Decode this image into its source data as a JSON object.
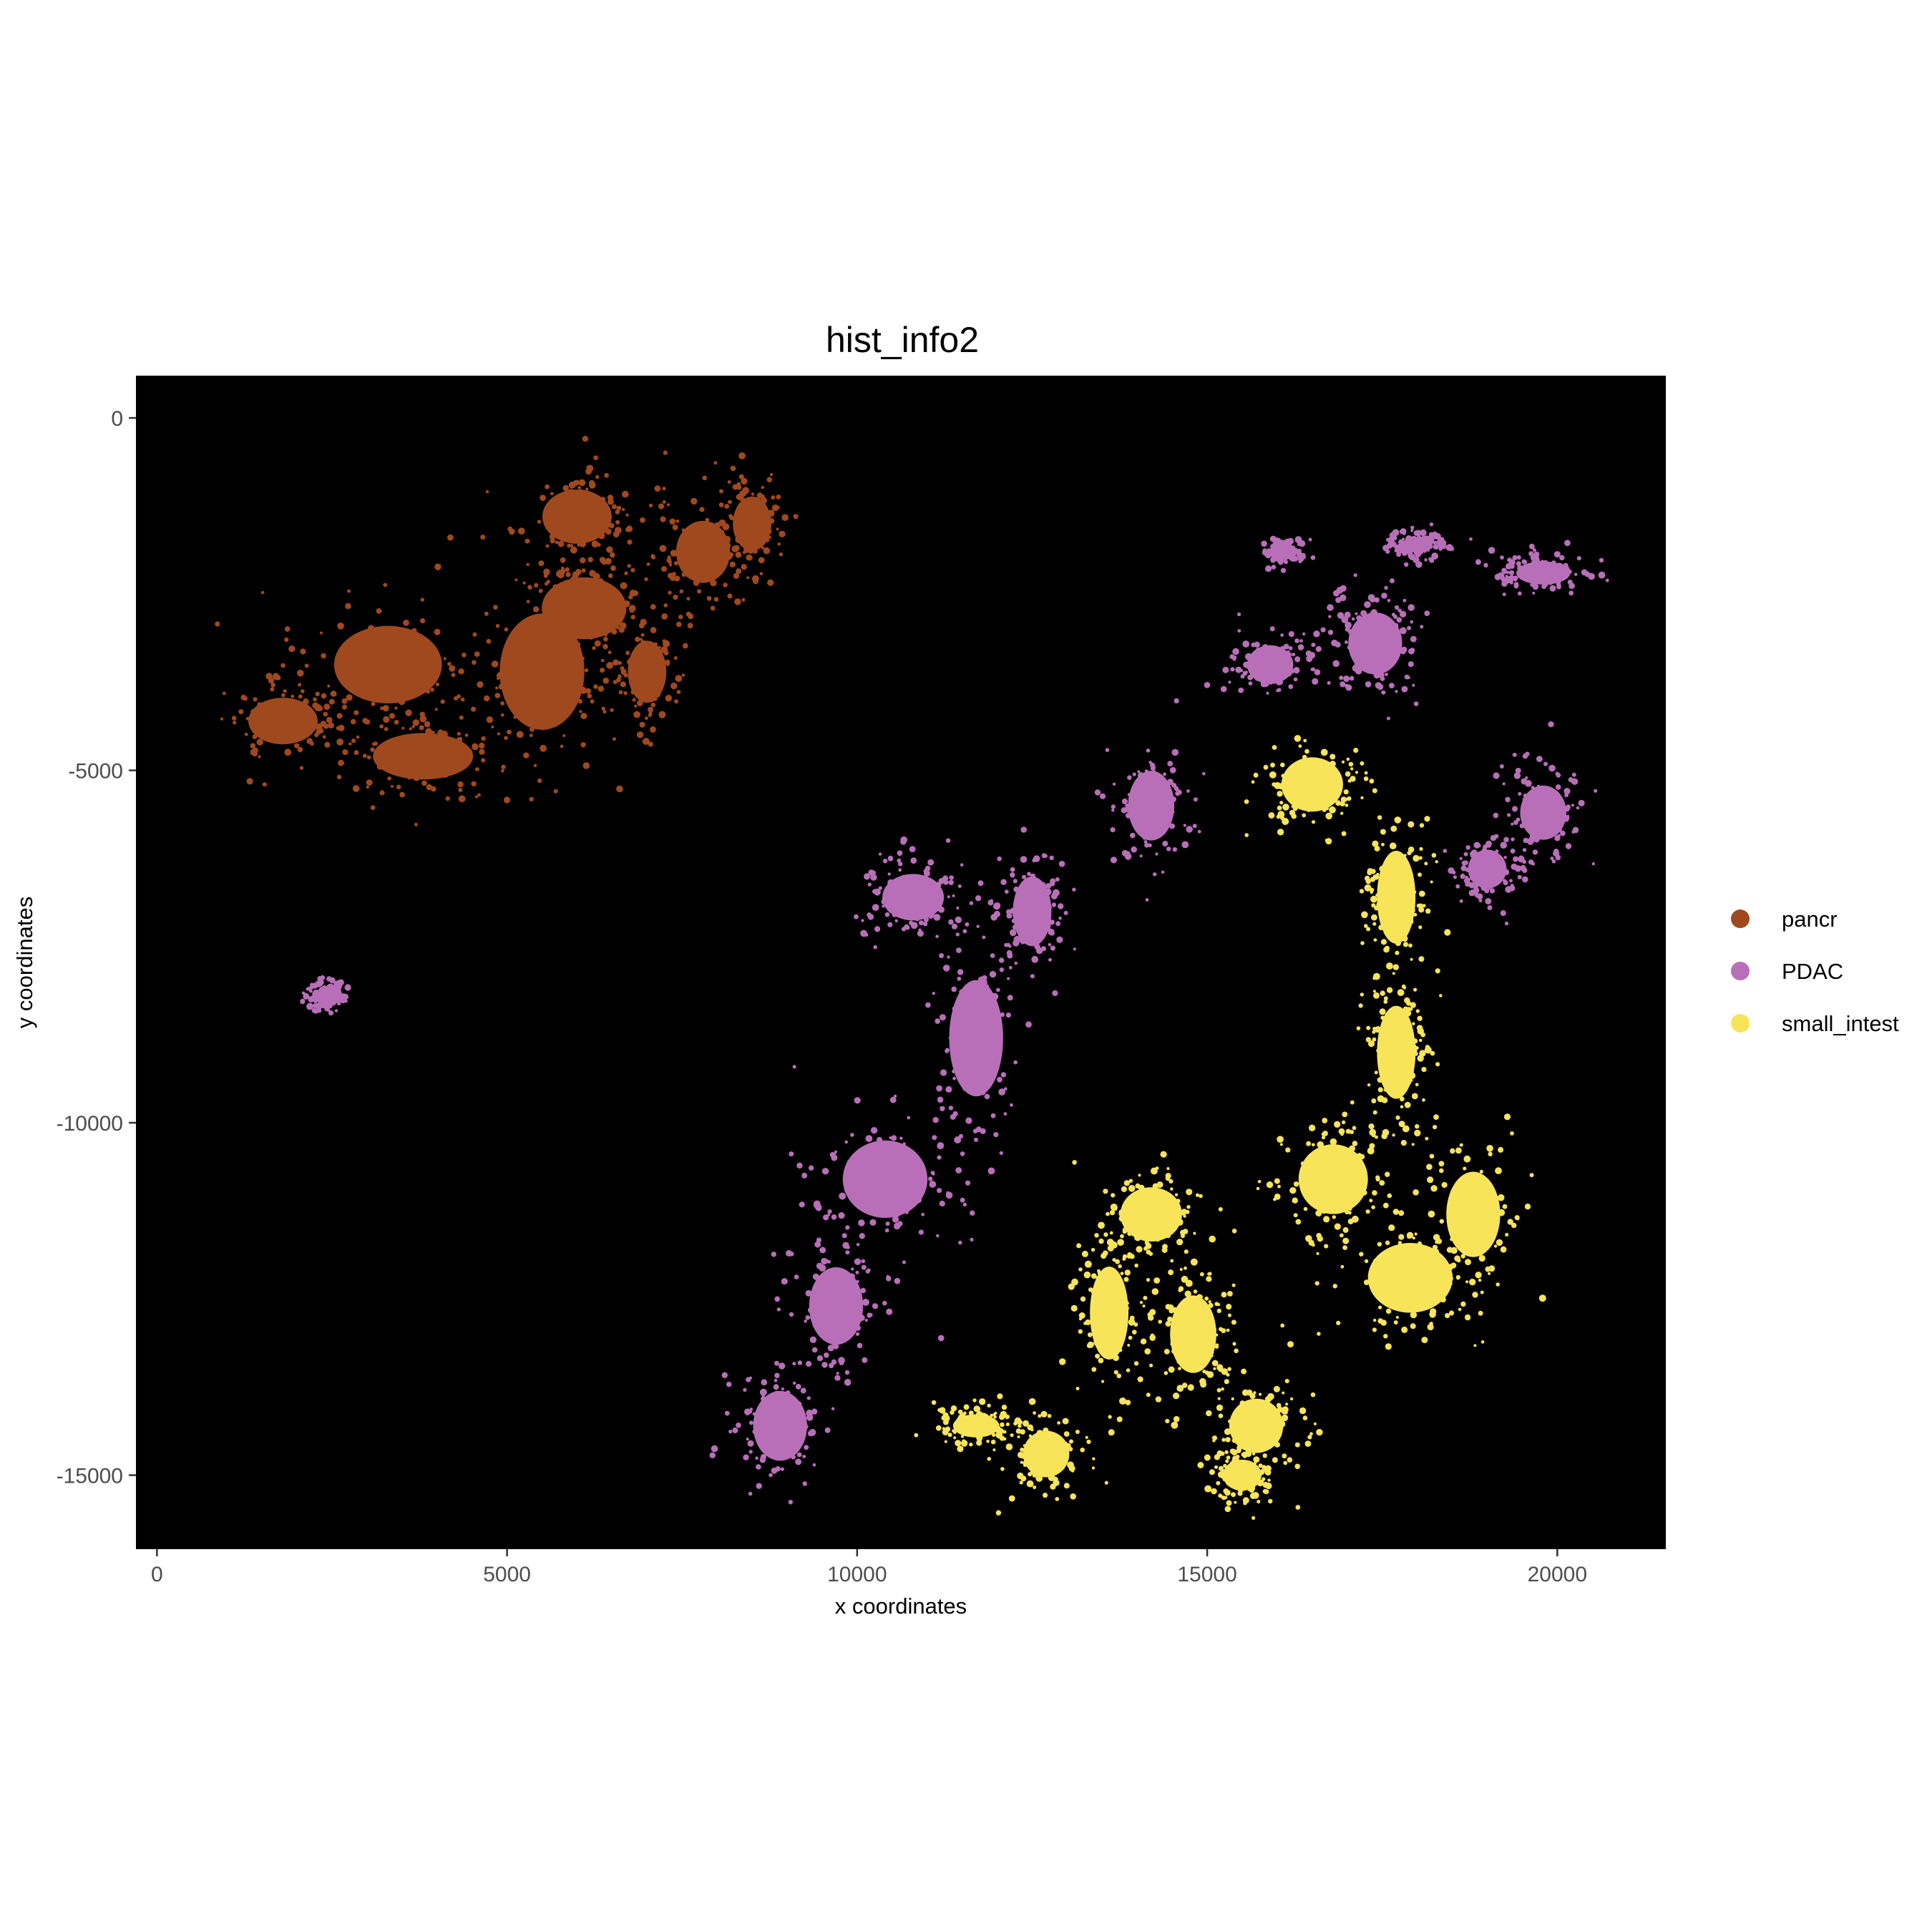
{
  "chart_data": {
    "type": "scatter",
    "title": "hist_info2",
    "xlabel": "x coordinates",
    "ylabel": "y coordinates",
    "xlim": [
      -300,
      21550
    ],
    "ylim": [
      -16050,
      600
    ],
    "x_ticks": [
      {
        "value": 0,
        "label": "0"
      },
      {
        "value": 5000,
        "label": "5000"
      },
      {
        "value": 10000,
        "label": "10000"
      },
      {
        "value": 15000,
        "label": "15000"
      },
      {
        "value": 20000,
        "label": "20000"
      }
    ],
    "y_ticks": [
      {
        "value": 0,
        "label": "0"
      },
      {
        "value": -5000,
        "label": "-5000"
      },
      {
        "value": -10000,
        "label": "-10000"
      },
      {
        "value": -15000,
        "label": "-15000"
      }
    ],
    "background": "#000000",
    "grid": false,
    "legend_position": "right",
    "series": [
      {
        "name": "pancr",
        "color": "#A0491E",
        "regions": [
          {
            "cx": 5500,
            "cy": -3600,
            "rx": 1100,
            "ry": 1500
          },
          {
            "cx": 3300,
            "cy": -3500,
            "rx": 1400,
            "ry": 1000
          },
          {
            "cx": 1800,
            "cy": -4300,
            "rx": 900,
            "ry": 600
          },
          {
            "cx": 6000,
            "cy": -1400,
            "rx": 900,
            "ry": 700
          },
          {
            "cx": 6100,
            "cy": -2700,
            "rx": 1100,
            "ry": 800
          },
          {
            "cx": 3800,
            "cy": -4800,
            "rx": 1300,
            "ry": 600
          },
          {
            "cx": 7800,
            "cy": -1900,
            "rx": 700,
            "ry": 800
          },
          {
            "cx": 8500,
            "cy": -1500,
            "rx": 500,
            "ry": 700
          },
          {
            "cx": 7000,
            "cy": -3600,
            "rx": 500,
            "ry": 800
          }
        ]
      },
      {
        "name": "PDAC",
        "color": "#B86FB8",
        "regions": [
          {
            "cx": 17400,
            "cy": -3200,
            "rx": 700,
            "ry": 800
          },
          {
            "cx": 15900,
            "cy": -3500,
            "rx": 600,
            "ry": 500
          },
          {
            "cx": 19800,
            "cy": -2200,
            "rx": 700,
            "ry": 300
          },
          {
            "cx": 16100,
            "cy": -1900,
            "rx": 300,
            "ry": 200
          },
          {
            "cx": 18000,
            "cy": -1800,
            "rx": 400,
            "ry": 200
          },
          {
            "cx": 14200,
            "cy": -5500,
            "rx": 600,
            "ry": 900
          },
          {
            "cx": 19800,
            "cy": -5600,
            "rx": 600,
            "ry": 700
          },
          {
            "cx": 19000,
            "cy": -6400,
            "rx": 500,
            "ry": 500
          },
          {
            "cx": 12500,
            "cy": -7000,
            "rx": 500,
            "ry": 900
          },
          {
            "cx": 10800,
            "cy": -6800,
            "rx": 800,
            "ry": 600
          },
          {
            "cx": 11700,
            "cy": -8800,
            "rx": 700,
            "ry": 1500
          },
          {
            "cx": 10400,
            "cy": -10800,
            "rx": 1100,
            "ry": 1000
          },
          {
            "cx": 9700,
            "cy": -12600,
            "rx": 700,
            "ry": 1000
          },
          {
            "cx": 8900,
            "cy": -14300,
            "rx": 700,
            "ry": 900
          },
          {
            "cx": 2400,
            "cy": -8200,
            "rx": 300,
            "ry": 200
          }
        ]
      },
      {
        "name": "small_intest",
        "color": "#F8E459",
        "regions": [
          {
            "cx": 16500,
            "cy": -5200,
            "rx": 800,
            "ry": 700
          },
          {
            "cx": 17700,
            "cy": -6800,
            "rx": 500,
            "ry": 1200
          },
          {
            "cx": 17700,
            "cy": -9000,
            "rx": 500,
            "ry": 1200
          },
          {
            "cx": 16800,
            "cy": -10800,
            "rx": 900,
            "ry": 900
          },
          {
            "cx": 17900,
            "cy": -12200,
            "rx": 1100,
            "ry": 900
          },
          {
            "cx": 18800,
            "cy": -11300,
            "rx": 700,
            "ry": 1100
          },
          {
            "cx": 14200,
            "cy": -11300,
            "rx": 800,
            "ry": 700
          },
          {
            "cx": 13600,
            "cy": -12700,
            "rx": 500,
            "ry": 1200
          },
          {
            "cx": 14800,
            "cy": -13000,
            "rx": 600,
            "ry": 1000
          },
          {
            "cx": 15700,
            "cy": -14300,
            "rx": 700,
            "ry": 700
          },
          {
            "cx": 15500,
            "cy": -15000,
            "rx": 500,
            "ry": 400
          },
          {
            "cx": 11700,
            "cy": -14300,
            "rx": 600,
            "ry": 300
          },
          {
            "cx": 12700,
            "cy": -14700,
            "rx": 600,
            "ry": 600
          }
        ]
      }
    ]
  }
}
